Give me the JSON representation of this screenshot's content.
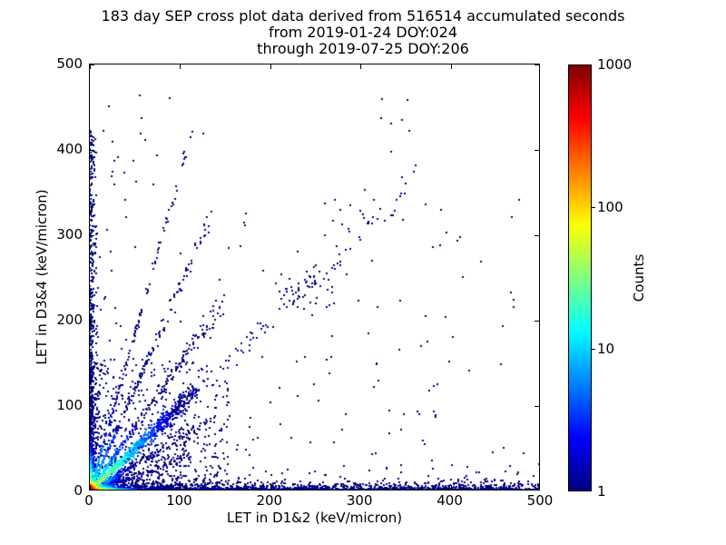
{
  "figure_title": {
    "line1": "183 day SEP cross plot data derived from 516514 accumulated seconds",
    "line2": "from 2019-01-24 DOY:024",
    "line3": "through 2019-07-25 DOY:206"
  },
  "chart_data": {
    "type": "scatter",
    "variant": "2d-histogram-density-crossplot",
    "title": "183 day SEP cross plot data derived from 516514 accumulated seconds\nfrom 2019-01-24 DOY:024\nthrough 2019-07-25 DOY:206",
    "xlabel": "LET in D1&2 (keV/micron)",
    "ylabel": "LET in D3&4 (keV/micron)",
    "xlim": [
      0,
      500
    ],
    "ylim": [
      0,
      500
    ],
    "xticks": [
      0,
      100,
      200,
      300,
      400,
      500
    ],
    "yticks": [
      0,
      100,
      200,
      300,
      400,
      500
    ],
    "grid": false,
    "background_color": "#ffffff",
    "single_count_color": "#000080",
    "colorbar": {
      "label": "Counts",
      "scale": "log",
      "min": 1,
      "max": 1000,
      "ticks": [
        1,
        10,
        100,
        1000
      ],
      "colormap": "jet"
    },
    "seed": 20190124,
    "components": [
      {
        "kind": "background",
        "name": "sparse-field",
        "n": 310,
        "xmax": 500,
        "ymax": 465,
        "xpower": 1.45,
        "ypower": 3.1,
        "thin_y": 340,
        "thin_x": 60,
        "thin_keep": 0.5
      },
      {
        "kind": "cloud",
        "name": "mid-diagonal-cluster",
        "cx": 237,
        "cy": 230,
        "sx": 14,
        "sy": 13,
        "n": 38
      },
      {
        "kind": "cloud",
        "name": "upper-diagonal-wisp",
        "cx": 287,
        "cy": 300,
        "sx": 22,
        "sy": 22,
        "n": 14
      },
      {
        "kind": "fan",
        "name": "origin-fan",
        "n": 950,
        "extent": 155,
        "power": 2.15,
        "count_peak": 4,
        "count_decay": 45
      },
      {
        "kind": "streak",
        "name": "diagonal-sparse",
        "slope": 1.0,
        "length": 355,
        "n": 150,
        "power": 1.35,
        "spread0": 2.5,
        "spread_growth": 0.018,
        "count_peak": 2,
        "count_decay": 400
      },
      {
        "kind": "streak",
        "name": "diagonal-main",
        "slope": 1.0,
        "length": 118,
        "n": 950,
        "power": 2.0,
        "spread0": 0.8,
        "spread_growth": 0.06,
        "count_peak": 45,
        "count_decay": 26
      },
      {
        "kind": "streak",
        "name": "streak-up-1",
        "slope": 1.5,
        "length": 150,
        "n": 330,
        "power": 2.1,
        "spread0": 0.8,
        "spread_growth": 0.05,
        "count_peak": 22,
        "count_decay": 18
      },
      {
        "kind": "streak",
        "name": "streak-up-2",
        "slope": 2.4,
        "length": 135,
        "n": 250,
        "power": 2.1,
        "spread0": 0.8,
        "spread_growth": 0.045,
        "count_peak": 16,
        "count_decay": 15
      },
      {
        "kind": "streak",
        "name": "streak-up-3",
        "slope": 3.7,
        "length": 118,
        "n": 170,
        "power": 2.0,
        "spread0": 0.8,
        "spread_growth": 0.04,
        "count_peak": 12,
        "count_decay": 13
      },
      {
        "kind": "streak",
        "name": "streak-down-1",
        "slope": 0.62,
        "length": 135,
        "n": 300,
        "power": 2.1,
        "spread0": 0.8,
        "spread_growth": 0.05,
        "count_peak": 20,
        "count_decay": 16
      },
      {
        "kind": "streak",
        "name": "streak-down-2",
        "slope": 0.35,
        "length": 110,
        "n": 240,
        "power": 2.0,
        "spread0": 0.7,
        "spread_growth": 0.05,
        "count_peak": 14,
        "count_decay": 14
      },
      {
        "kind": "band",
        "name": "x-axis-band",
        "axis": "x",
        "n": 2500,
        "length": 500,
        "power": 2.6,
        "thickness": 3.0,
        "count_peak": 180,
        "count_decay_along": 13,
        "count_decay_across": 3
      },
      {
        "kind": "band",
        "name": "x-axis-band-tail",
        "axis": "x",
        "n": 620,
        "length": 468,
        "power": 1.1,
        "thickness": 3.5,
        "count_peak": 2,
        "count_decay_along": 600,
        "count_decay_across": 5
      },
      {
        "kind": "band",
        "name": "y-axis-band",
        "axis": "y",
        "n": 980,
        "length": 425,
        "power": 2.7,
        "thickness": 2.4,
        "count_peak": 100,
        "count_decay_along": 14,
        "count_decay_across": 3
      },
      {
        "kind": "hotspot",
        "name": "origin-hotspot",
        "n": 2400,
        "scale": 2.3,
        "count_peak": 1000,
        "count_decay": 4.0
      },
      {
        "kind": "points",
        "name": "isolated-points",
        "pts": [
          [
            324,
            460
          ],
          [
            352,
            459
          ],
          [
            126,
            419
          ],
          [
            105,
            398
          ],
          [
            334,
            398
          ],
          [
            359,
            375
          ],
          [
            305,
            353
          ],
          [
            315,
            341
          ],
          [
            289,
            335
          ],
          [
            5,
            376
          ],
          [
            5,
            336
          ],
          [
            24,
            369
          ],
          [
            51,
            363
          ],
          [
            432,
            22
          ],
          [
            458,
            13
          ],
          [
            401,
            31
          ],
          [
            371,
            55
          ],
          [
            447,
            46
          ],
          [
            486,
            8
          ],
          [
            466,
            30
          ]
        ]
      }
    ]
  }
}
